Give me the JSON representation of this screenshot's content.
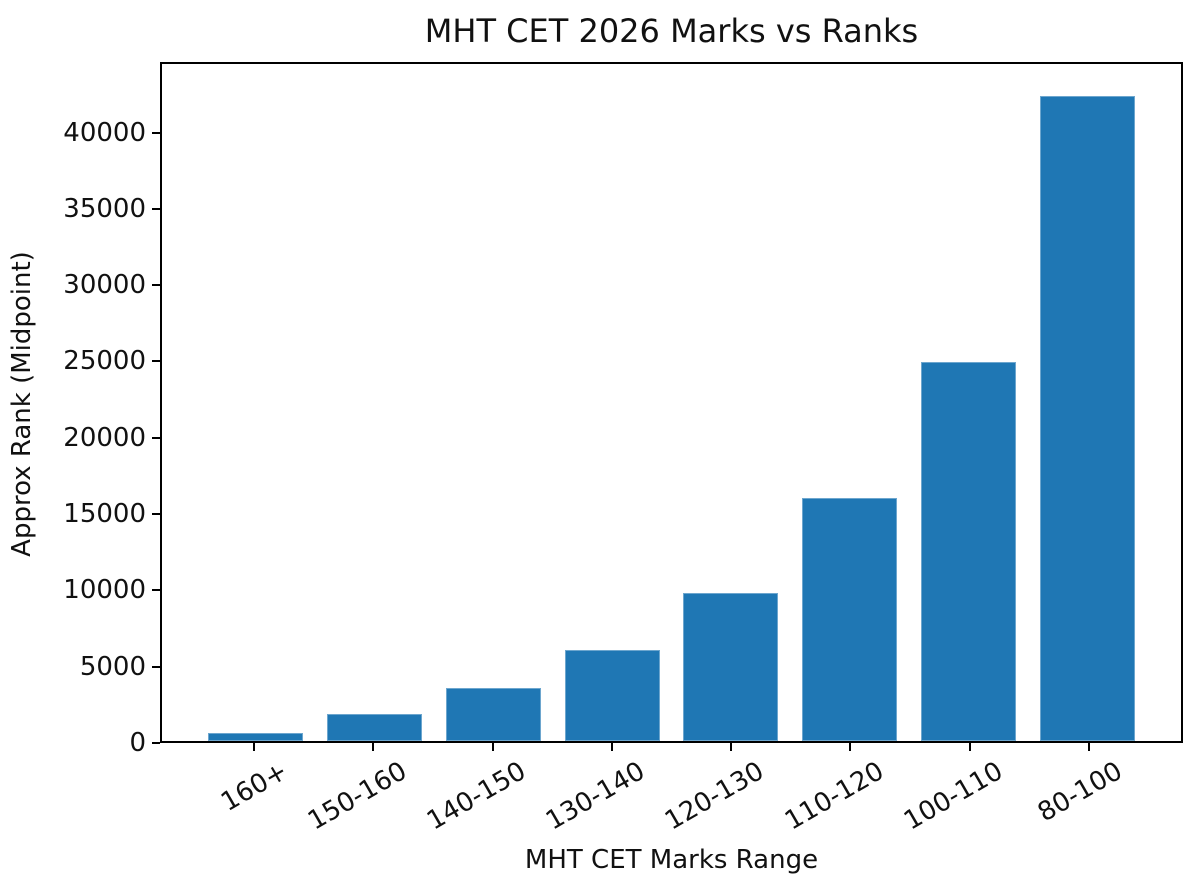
{
  "chart_data": {
    "type": "bar",
    "title": "MHT CET 2026 Marks vs Ranks",
    "xlabel": "MHT CET Marks Range",
    "ylabel": "Approx Rank (Midpoint)",
    "categories": [
      "160+",
      "150-160",
      "140-150",
      "130-140",
      "120-130",
      "110-120",
      "100-110",
      "80-100"
    ],
    "values": [
      500,
      1750,
      3500,
      6000,
      9750,
      16000,
      25000,
      42500
    ],
    "ylim": [
      0,
      44625
    ],
    "yticks": [
      0,
      5000,
      10000,
      15000,
      20000,
      25000,
      30000,
      35000,
      40000
    ],
    "xtick_rotation_deg": 30,
    "bar_color": "#1f77b4",
    "axis_color": "#000000",
    "text_color": "#111111",
    "background": "#ffffff",
    "grid": false,
    "legend_position": "none"
  }
}
